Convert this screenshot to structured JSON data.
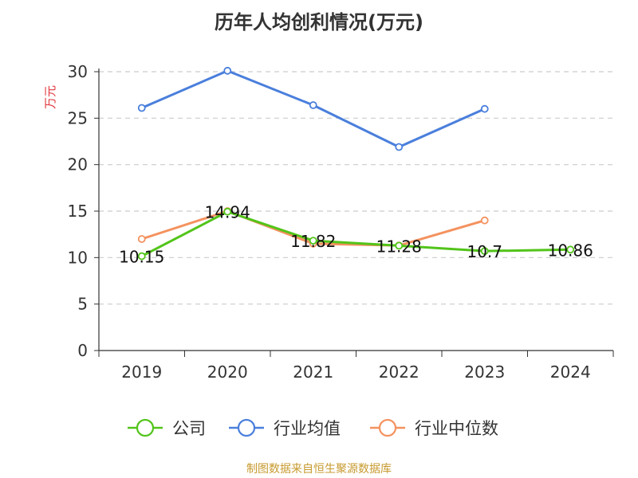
{
  "chart_data": {
    "type": "line",
    "title": "历年人均创利情况(万元)",
    "ylabel": "万元",
    "categories": [
      "2019",
      "2020",
      "2021",
      "2022",
      "2023",
      "2024"
    ],
    "ylim": [
      0,
      30
    ],
    "yticks": [
      0,
      5,
      10,
      15,
      20,
      25,
      30
    ],
    "grid": true,
    "legend_position": "bottom",
    "series": [
      {
        "name": "公司",
        "color": "#52c41a",
        "values": [
          10.15,
          14.94,
          11.82,
          11.28,
          10.7,
          10.86
        ],
        "labels": [
          "10.15",
          "14.94",
          "11.82",
          "11.28",
          "10.7",
          "10.86"
        ]
      },
      {
        "name": "行业均值",
        "color": "#4a7fdc",
        "values": [
          26.1,
          30.1,
          26.4,
          21.9,
          26.0,
          null
        ]
      },
      {
        "name": "行业中位数",
        "color": "#f4925f",
        "values": [
          12.0,
          15.0,
          11.5,
          11.3,
          14.0,
          null
        ]
      }
    ]
  },
  "source": "制图数据来自恒生聚源数据库"
}
